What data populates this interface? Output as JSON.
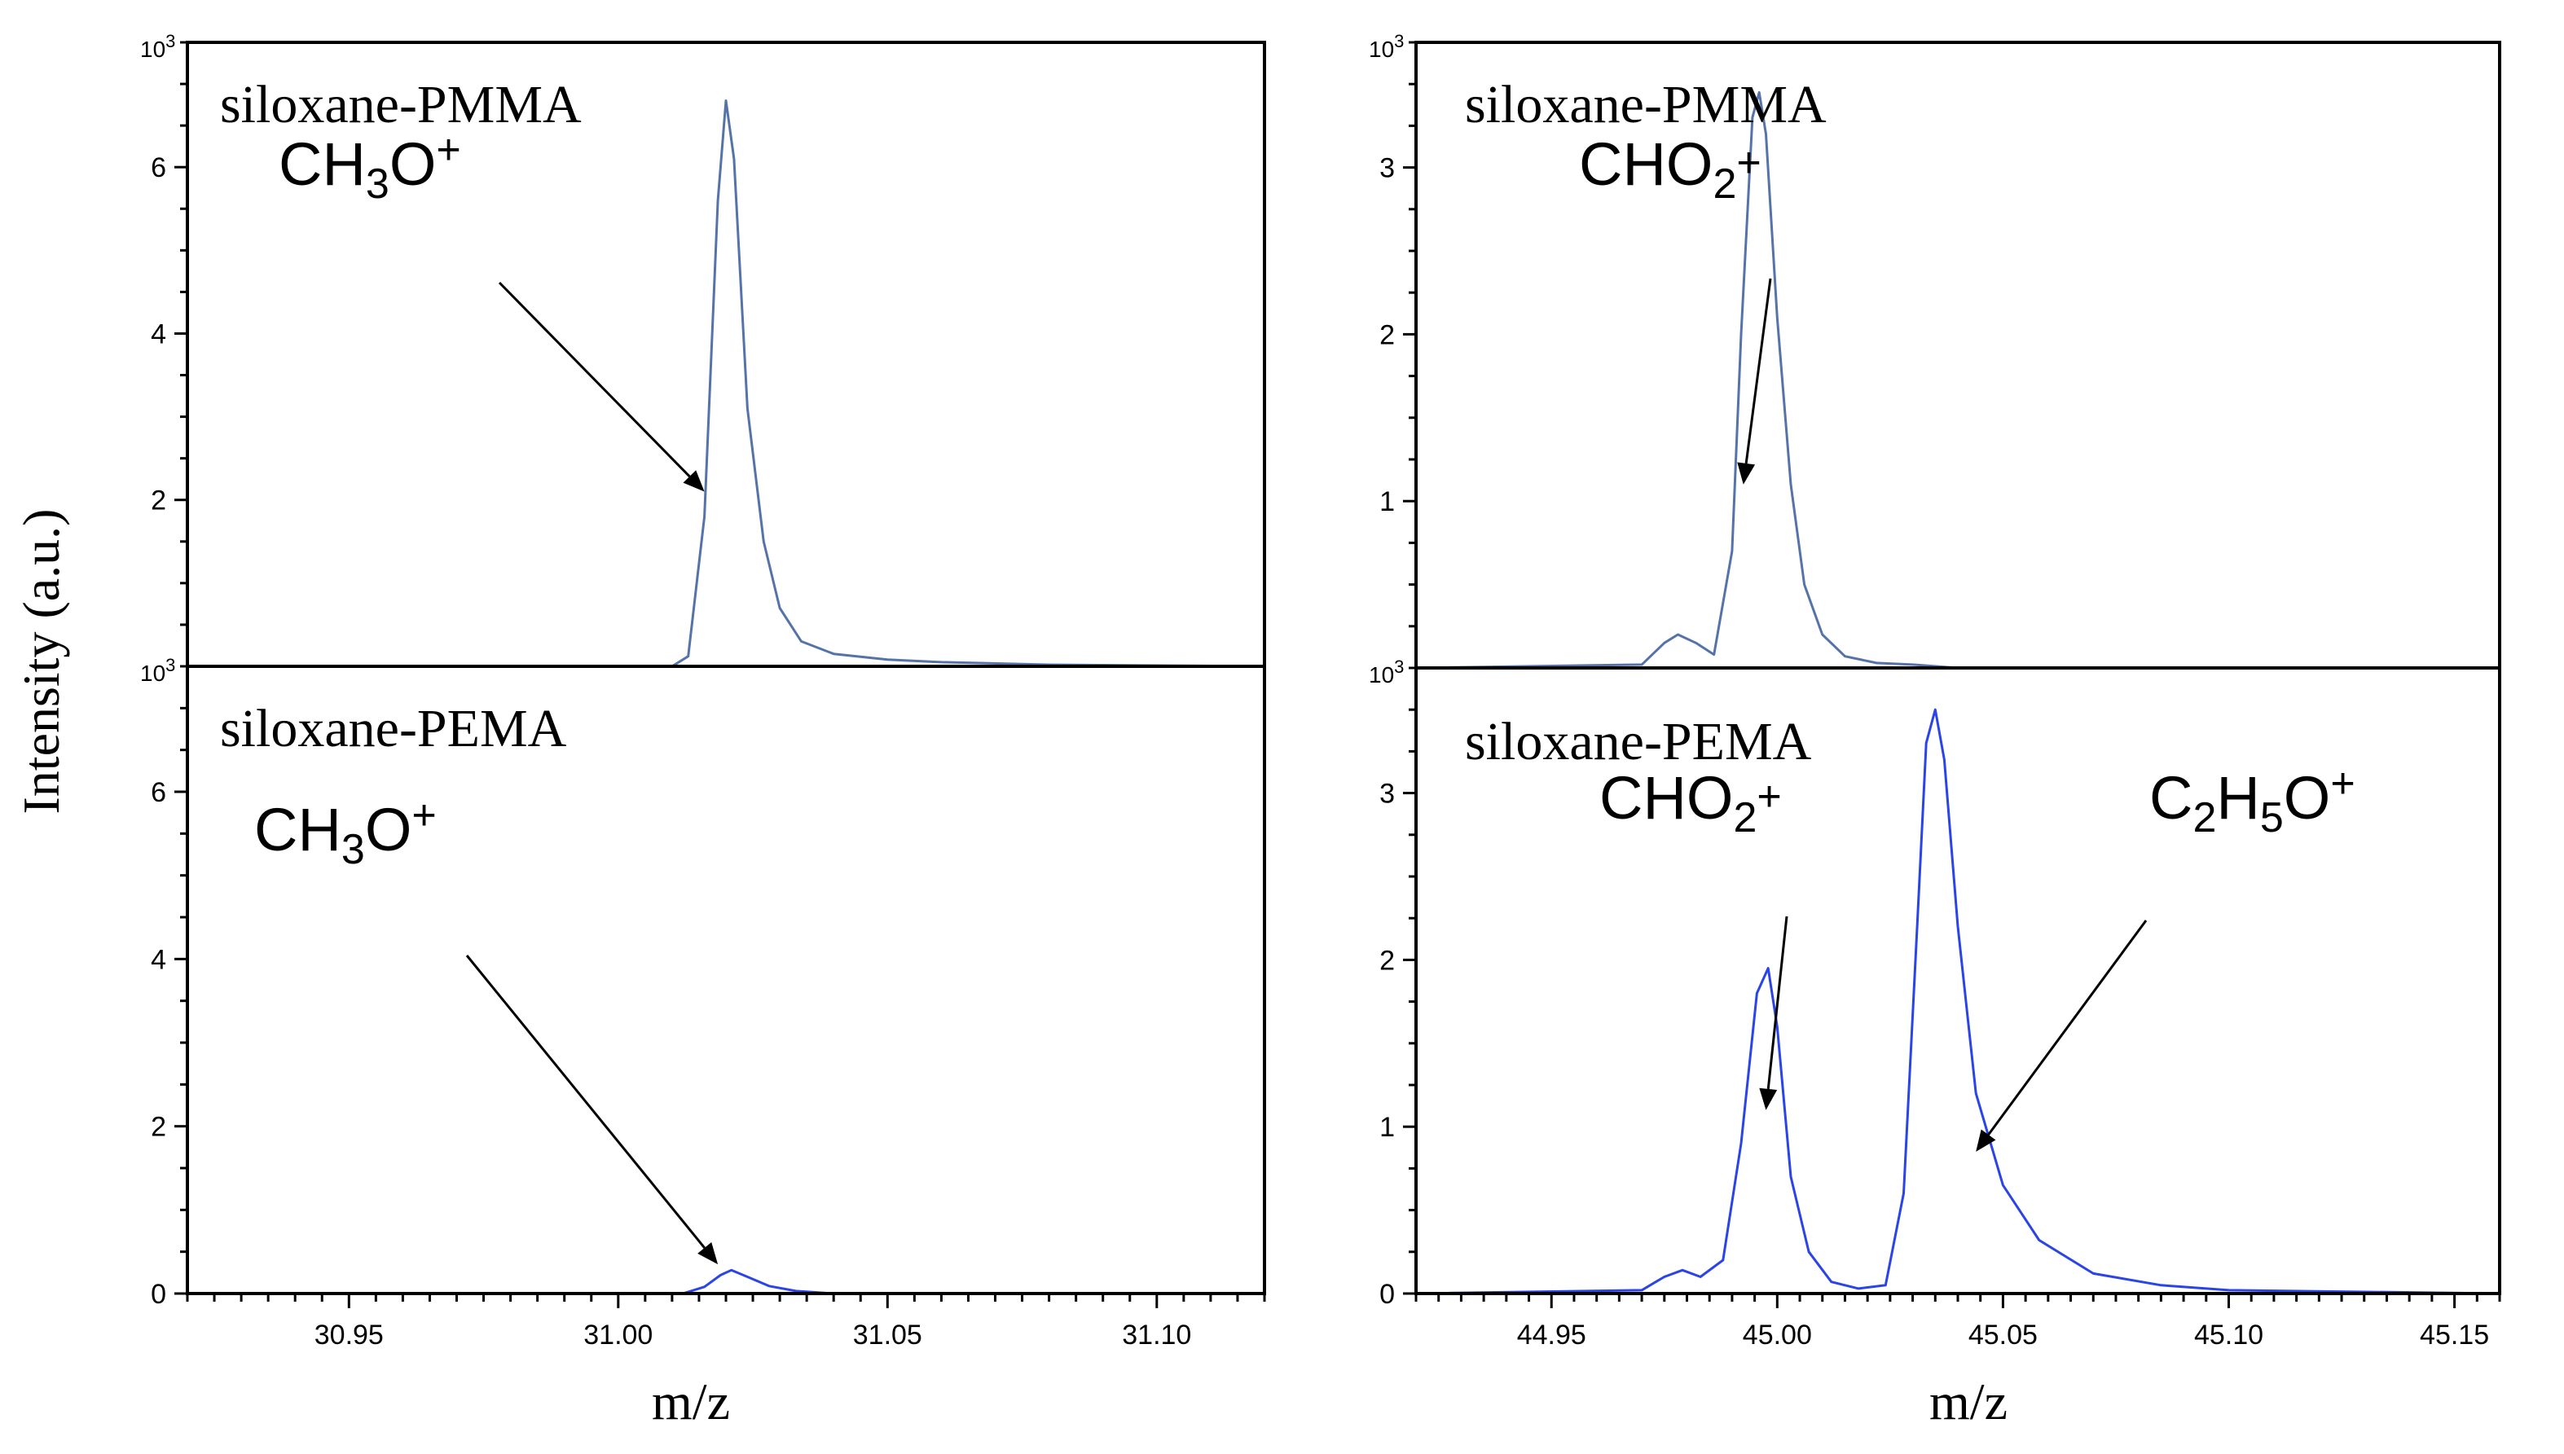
{
  "figure": {
    "ylabel": "Intensity (a.u.)",
    "xlabel": "m/z",
    "exponent_base": "10",
    "exponent_power": "3"
  },
  "chart_data": [
    {
      "type": "line",
      "panel": "top-left",
      "label": "siloxane-PMMA",
      "xlim": [
        30.92,
        31.12
      ],
      "ylim": [
        0,
        7.5
      ],
      "yticks": [
        2,
        4,
        6
      ],
      "xticks": [],
      "show_exponent": true,
      "color": "#5573a8",
      "series": [
        {
          "name": "siloxane-PMMA",
          "x": [
            30.92,
            31.01,
            31.013,
            31.016,
            31.0185,
            31.02,
            31.0215,
            31.024,
            31.027,
            31.03,
            31.034,
            31.04,
            31.05,
            31.06,
            31.08,
            31.12
          ],
          "y": [
            0,
            0,
            0.12,
            1.8,
            5.6,
            6.8,
            6.1,
            3.1,
            1.5,
            0.7,
            0.3,
            0.15,
            0.08,
            0.05,
            0.02,
            0
          ]
        }
      ],
      "annotations": [
        {
          "text": "CH3O+",
          "formula": {
            "main": "CH",
            "sub": "3",
            "after": "O",
            "sup": "+"
          },
          "x": 31.016,
          "y": 2.1
        }
      ],
      "unit": "10^3"
    },
    {
      "type": "line",
      "panel": "bottom-left",
      "label": "siloxane-PEMA",
      "xlim": [
        30.92,
        31.12
      ],
      "ylim": [
        0,
        7.5
      ],
      "yticks": [
        0,
        2,
        4,
        6
      ],
      "xticks": [
        "30.95",
        "31.00",
        "31.05",
        "31.10"
      ],
      "show_exponent": true,
      "color": "#2a44e8",
      "series": [
        {
          "name": "siloxane-PEMA",
          "x": [
            30.92,
            31.012,
            31.016,
            31.019,
            31.021,
            31.024,
            31.028,
            31.033,
            31.04,
            31.12
          ],
          "y": [
            0,
            0,
            0.08,
            0.22,
            0.28,
            0.2,
            0.09,
            0.03,
            0,
            0
          ]
        }
      ],
      "annotations": [
        {
          "text": "CH3O+",
          "formula": {
            "main": "CH",
            "sub": "3",
            "after": "O",
            "sup": "+"
          },
          "x": 31.0185,
          "y": 0.35
        }
      ],
      "unit": "10^3"
    },
    {
      "type": "line",
      "panel": "top-right",
      "label": "siloxane-PMMA",
      "xlim": [
        44.92,
        45.16
      ],
      "ylim": [
        0,
        3.75
      ],
      "yticks": [
        1,
        2,
        3
      ],
      "xticks": [],
      "show_exponent": true,
      "color": "#5573a8",
      "series": [
        {
          "name": "siloxane-PMMA",
          "x": [
            44.92,
            44.97,
            44.975,
            44.978,
            44.982,
            44.986,
            44.99,
            44.992,
            44.9945,
            44.996,
            44.9975,
            45.0,
            45.003,
            45.006,
            45.01,
            45.015,
            45.022,
            45.03,
            45.04,
            45.16
          ],
          "y": [
            0,
            0.02,
            0.15,
            0.2,
            0.15,
            0.08,
            0.7,
            2.0,
            3.3,
            3.45,
            3.2,
            2.1,
            1.1,
            0.5,
            0.2,
            0.07,
            0.03,
            0.02,
            0,
            0
          ]
        }
      ],
      "annotations": [
        {
          "text": "CHO2+",
          "formula": {
            "main": "CHO",
            "sub": "2",
            "after": "",
            "sup": "+"
          },
          "x": 44.9925,
          "y": 1.1
        }
      ],
      "unit": "10^3"
    },
    {
      "type": "line",
      "panel": "bottom-right",
      "label": "siloxane-PEMA",
      "xlim": [
        44.92,
        45.16
      ],
      "ylim": [
        0,
        3.75
      ],
      "yticks": [
        0,
        1,
        2,
        3
      ],
      "xticks": [
        "44.95",
        "45.00",
        "45.05",
        "45.10",
        "45.15"
      ],
      "show_exponent": true,
      "color": "#2a44e8",
      "series": [
        {
          "name": "siloxane-PEMA",
          "x": [
            44.92,
            44.97,
            44.975,
            44.979,
            44.983,
            44.988,
            44.992,
            44.9955,
            44.998,
            45.0,
            45.003,
            45.007,
            45.012,
            45.018,
            45.024,
            45.028,
            45.031,
            45.033,
            45.035,
            45.037,
            45.04,
            45.044,
            45.05,
            45.058,
            45.07,
            45.085,
            45.1,
            45.16
          ],
          "y": [
            0,
            0.02,
            0.1,
            0.14,
            0.1,
            0.2,
            0.9,
            1.8,
            1.95,
            1.6,
            0.7,
            0.25,
            0.07,
            0.03,
            0.05,
            0.6,
            2.2,
            3.3,
            3.5,
            3.2,
            2.2,
            1.2,
            0.65,
            0.32,
            0.12,
            0.05,
            0.02,
            0
          ]
        }
      ],
      "annotations": [
        {
          "text": "CHO2+",
          "formula": {
            "main": "CHO",
            "sub": "2",
            "after": "",
            "sup": "+"
          },
          "x": 44.9975,
          "y": 1.1
        },
        {
          "text": "C2H5O+",
          "formula": {
            "main": "C",
            "sub": "2",
            "after": "H",
            "sub2": "5",
            "after2": "O",
            "sup": "+"
          },
          "x": 45.044,
          "y": 0.85
        }
      ],
      "unit": "10^3"
    }
  ]
}
